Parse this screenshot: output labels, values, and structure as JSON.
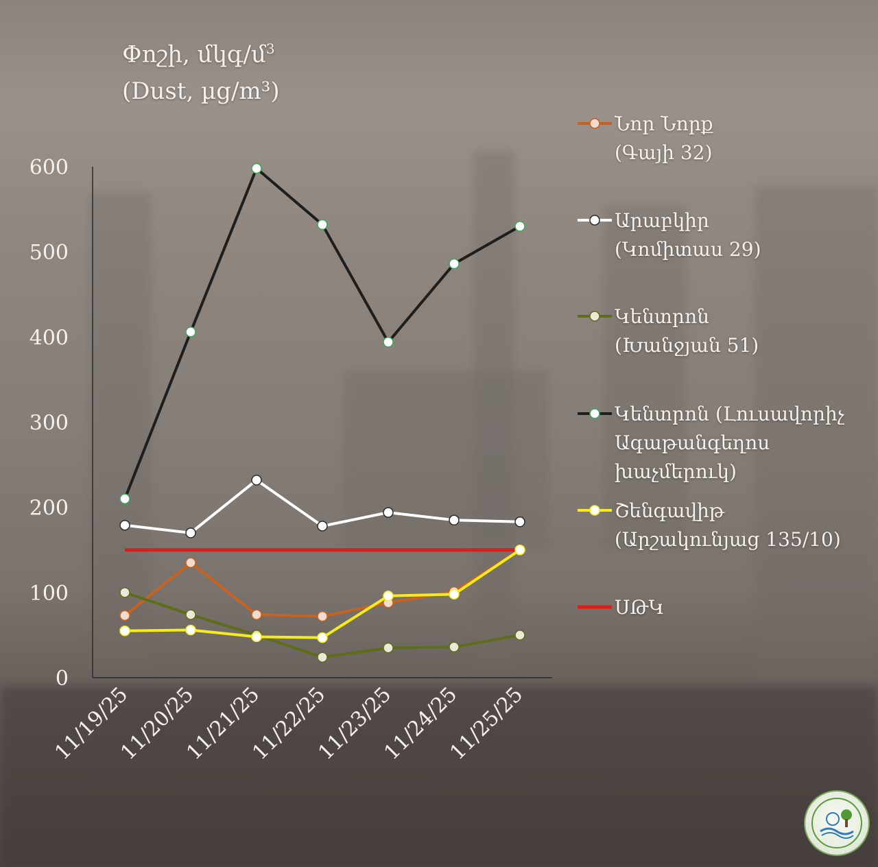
{
  "title": {
    "line1": "Փոշի, մկգ/մ",
    "line1_sup": "3",
    "line2": "(Dust, µg/m³)"
  },
  "legend": [
    {
      "key": "nor_nork",
      "text": "Նոր Նորք\n(Գայի 32)"
    },
    {
      "key": "arabkir",
      "text": "Արաբկիր\n(Կոմիտաս 29)"
    },
    {
      "key": "kentron_khanjyan",
      "text": "Կենտրոն\n(Խանջյան 51)"
    },
    {
      "key": "kentron_lusavorich",
      "text": "Կենտրոն (Լուսավորիչ\nԱգաթանգեղոս\nխաչմերուկ)"
    },
    {
      "key": "shengavit",
      "text": "Շենգավիթ\n(Արշակունյաց 135/10)"
    },
    {
      "key": "mac",
      "text": "ՍԹԿ"
    }
  ],
  "logo": {
    "icon": "emblem-logo-icon"
  },
  "chart_data": {
    "type": "line",
    "title": "Փոշի, մկգ/մ3 (Dust, µg/m³)",
    "categories": [
      "11/19/25",
      "11/20/25",
      "11/21/25",
      "11/22/25",
      "11/23/25",
      "11/24/25",
      "11/25/25"
    ],
    "ylim": [
      0,
      600
    ],
    "yticks": [
      0,
      100,
      200,
      300,
      400,
      500,
      600
    ],
    "grid": false,
    "legend_position": "right",
    "series": [
      {
        "name": "Նոր Նորք (Գայի 32)",
        "key": "nor_nork",
        "color": "#c8631f",
        "marker_fill": "#f2dcd0",
        "marker_stroke": "#c8631f",
        "values": [
          73,
          135,
          74,
          72,
          88,
          101,
          150
        ]
      },
      {
        "name": "Արաբկիր (Կոմիտաս 29)",
        "key": "arabkir",
        "color": "#ffffff",
        "marker_fill": "#ffffff",
        "marker_stroke": "#2b2b2b",
        "values": [
          179,
          170,
          232,
          178,
          194,
          185,
          183
        ]
      },
      {
        "name": "Կենտրոն (Խանջյան 51)",
        "key": "kentron_khanjyan",
        "color": "#5e6d1a",
        "marker_fill": "#ece9d9",
        "marker_stroke": "#5e6d1a",
        "values": [
          100,
          74,
          50,
          24,
          35,
          36,
          50
        ]
      },
      {
        "name": "Կենտրոն (Լուսավորիչ Ագաթանգեղոս խաչմերուկ)",
        "key": "kentron_lusavorich",
        "color": "#1e1e1e",
        "marker_fill": "#ffffff",
        "marker_stroke": "#3da55a",
        "values": [
          210,
          406,
          598,
          532,
          394,
          486,
          530
        ]
      },
      {
        "name": "Շենգավիթ (Արշակունյաց 135/10)",
        "key": "shengavit",
        "color": "#f5ec1a",
        "marker_fill": "#ffffff",
        "marker_stroke": "#f5ec1a",
        "values": [
          55,
          56,
          48,
          47,
          96,
          98,
          150
        ]
      },
      {
        "name": "ՍԹԿ",
        "key": "mac",
        "color": "#e11b16",
        "marker_fill": null,
        "marker_stroke": null,
        "values": [
          150,
          150,
          150,
          150,
          150,
          150,
          150
        ]
      }
    ]
  }
}
